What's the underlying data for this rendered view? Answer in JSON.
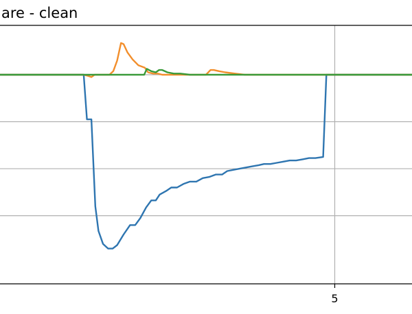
{
  "chart_data": {
    "type": "line",
    "title": "are - clean",
    "xlabel": "",
    "ylabel": "",
    "xlim": [
      -0.2,
      6.2
    ],
    "ylim": [
      -1.38,
      0.82
    ],
    "grid": true,
    "x_ticks": [
      5
    ],
    "x_tick_labels": [
      "5"
    ],
    "y_grid_values": [
      0.4,
      0.0,
      -0.4,
      -0.8
    ],
    "colors": {
      "blue": "#2e75b0",
      "orange": "#f28e2b",
      "green": "#3a9a3a",
      "grid": "#b0b0b0",
      "axes": "#000000"
    },
    "series": [
      {
        "color": "#2e75b0",
        "points": [
          [
            -0.2,
            0.4
          ],
          [
            1.1,
            0.4
          ],
          [
            1.15,
            0.02
          ],
          [
            1.22,
            0.02
          ],
          [
            1.28,
            -0.72
          ],
          [
            1.33,
            -0.93
          ],
          [
            1.4,
            -1.04
          ],
          [
            1.48,
            -1.08
          ],
          [
            1.55,
            -1.08
          ],
          [
            1.62,
            -1.05
          ],
          [
            1.72,
            -0.96
          ],
          [
            1.82,
            -0.88
          ],
          [
            1.9,
            -0.88
          ],
          [
            1.98,
            -0.82
          ],
          [
            2.07,
            -0.73
          ],
          [
            2.15,
            -0.67
          ],
          [
            2.22,
            -0.67
          ],
          [
            2.28,
            -0.62
          ],
          [
            2.38,
            -0.59
          ],
          [
            2.46,
            -0.56
          ],
          [
            2.55,
            -0.56
          ],
          [
            2.65,
            -0.53
          ],
          [
            2.75,
            -0.51
          ],
          [
            2.85,
            -0.51
          ],
          [
            2.95,
            -0.48
          ],
          [
            3.05,
            -0.47
          ],
          [
            3.15,
            -0.45
          ],
          [
            3.25,
            -0.45
          ],
          [
            3.33,
            -0.42
          ],
          [
            3.42,
            -0.41
          ],
          [
            3.52,
            -0.4
          ],
          [
            3.62,
            -0.39
          ],
          [
            3.72,
            -0.38
          ],
          [
            3.82,
            -0.37
          ],
          [
            3.9,
            -0.36
          ],
          [
            4.0,
            -0.36
          ],
          [
            4.1,
            -0.35
          ],
          [
            4.2,
            -0.34
          ],
          [
            4.3,
            -0.33
          ],
          [
            4.4,
            -0.33
          ],
          [
            4.5,
            -0.32
          ],
          [
            4.6,
            -0.31
          ],
          [
            4.7,
            -0.31
          ],
          [
            4.82,
            -0.3
          ],
          [
            4.87,
            0.4
          ],
          [
            6.2,
            0.4
          ]
        ]
      },
      {
        "color": "#f28e2b",
        "points": [
          [
            -0.2,
            0.4
          ],
          [
            1.1,
            0.4
          ],
          [
            1.17,
            0.39
          ],
          [
            1.22,
            0.38
          ],
          [
            1.27,
            0.4
          ],
          [
            1.5,
            0.4
          ],
          [
            1.56,
            0.43
          ],
          [
            1.62,
            0.52
          ],
          [
            1.68,
            0.67
          ],
          [
            1.72,
            0.66
          ],
          [
            1.78,
            0.59
          ],
          [
            1.86,
            0.53
          ],
          [
            1.95,
            0.48
          ],
          [
            2.05,
            0.46
          ],
          [
            2.1,
            0.42
          ],
          [
            2.18,
            0.41
          ],
          [
            2.25,
            0.41
          ],
          [
            2.32,
            0.4
          ],
          [
            3.0,
            0.4
          ],
          [
            3.07,
            0.44
          ],
          [
            3.12,
            0.44
          ],
          [
            3.2,
            0.43
          ],
          [
            3.3,
            0.42
          ],
          [
            3.45,
            0.41
          ],
          [
            3.6,
            0.4
          ],
          [
            6.2,
            0.4
          ]
        ]
      },
      {
        "color": "#3a9a3a",
        "points": [
          [
            -0.2,
            0.4
          ],
          [
            2.04,
            0.4
          ],
          [
            2.08,
            0.45
          ],
          [
            2.15,
            0.43
          ],
          [
            2.22,
            0.42
          ],
          [
            2.27,
            0.44
          ],
          [
            2.32,
            0.44
          ],
          [
            2.4,
            0.42
          ],
          [
            2.5,
            0.41
          ],
          [
            2.6,
            0.41
          ],
          [
            2.75,
            0.4
          ],
          [
            6.2,
            0.4
          ]
        ]
      }
    ]
  }
}
